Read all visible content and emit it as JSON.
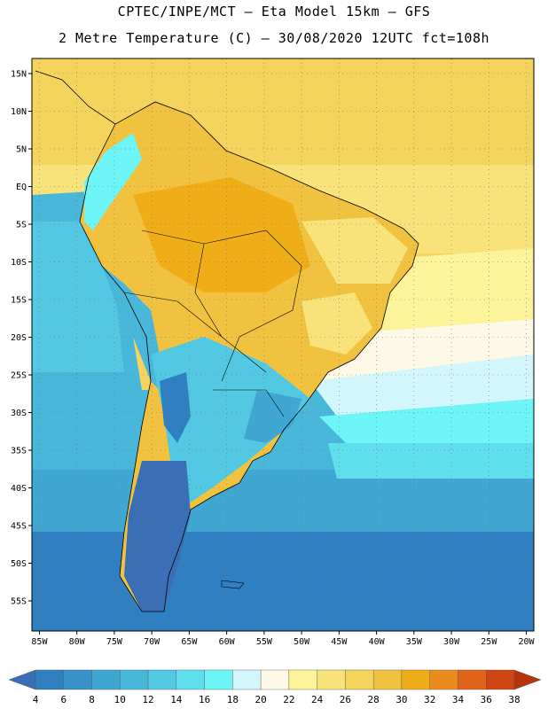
{
  "title_line1": "CPTEC/INPE/MCT –  Eta Model 15km – GFS",
  "title_line2": "2 Metre Temperature (C) – 30/08/2020 12UTC fct=108h",
  "lat_ticks": [
    {
      "label": "15N",
      "value": 15
    },
    {
      "label": "10N",
      "value": 10
    },
    {
      "label": "5N",
      "value": 5
    },
    {
      "label": "EQ",
      "value": 0
    },
    {
      "label": "5S",
      "value": -5
    },
    {
      "label": "10S",
      "value": -10
    },
    {
      "label": "15S",
      "value": -15
    },
    {
      "label": "20S",
      "value": -20
    },
    {
      "label": "25S",
      "value": -25
    },
    {
      "label": "30S",
      "value": -30
    },
    {
      "label": "35S",
      "value": -35
    },
    {
      "label": "40S",
      "value": -40
    },
    {
      "label": "45S",
      "value": -45
    },
    {
      "label": "50S",
      "value": -50
    },
    {
      "label": "55S",
      "value": -55
    }
  ],
  "lon_ticks": [
    {
      "label": "85W",
      "value": -85
    },
    {
      "label": "80W",
      "value": -80
    },
    {
      "label": "75W",
      "value": -75
    },
    {
      "label": "70W",
      "value": -70
    },
    {
      "label": "65W",
      "value": -65
    },
    {
      "label": "60W",
      "value": -60
    },
    {
      "label": "55W",
      "value": -55
    },
    {
      "label": "50W",
      "value": -50
    },
    {
      "label": "45W",
      "value": -45
    },
    {
      "label": "40W",
      "value": -40
    },
    {
      "label": "35W",
      "value": -35
    },
    {
      "label": "30W",
      "value": -30
    },
    {
      "label": "25W",
      "value": -25
    },
    {
      "label": "20W",
      "value": -20
    }
  ],
  "extent": {
    "lon_min": -86,
    "lon_max": -19,
    "lat_min": -59,
    "lat_max": 17
  },
  "colorbar": {
    "labels": [
      "4",
      "6",
      "8",
      "10",
      "12",
      "14",
      "16",
      "18",
      "20",
      "22",
      "24",
      "26",
      "28",
      "30",
      "32",
      "34",
      "36",
      "38"
    ],
    "colors": [
      "#3a6fb5",
      "#2f7fc1",
      "#3890c8",
      "#40a7d2",
      "#49b7d9",
      "#52c8e3",
      "#5fdfee",
      "#6ef5f7",
      "#d2f6fb",
      "#fef9e7",
      "#fdf39b",
      "#f8e27a",
      "#f4d45d",
      "#f1c23f",
      "#efae18",
      "#eb8a1d",
      "#e0631a",
      "#ce4613",
      "#b5330d"
    ]
  }
}
